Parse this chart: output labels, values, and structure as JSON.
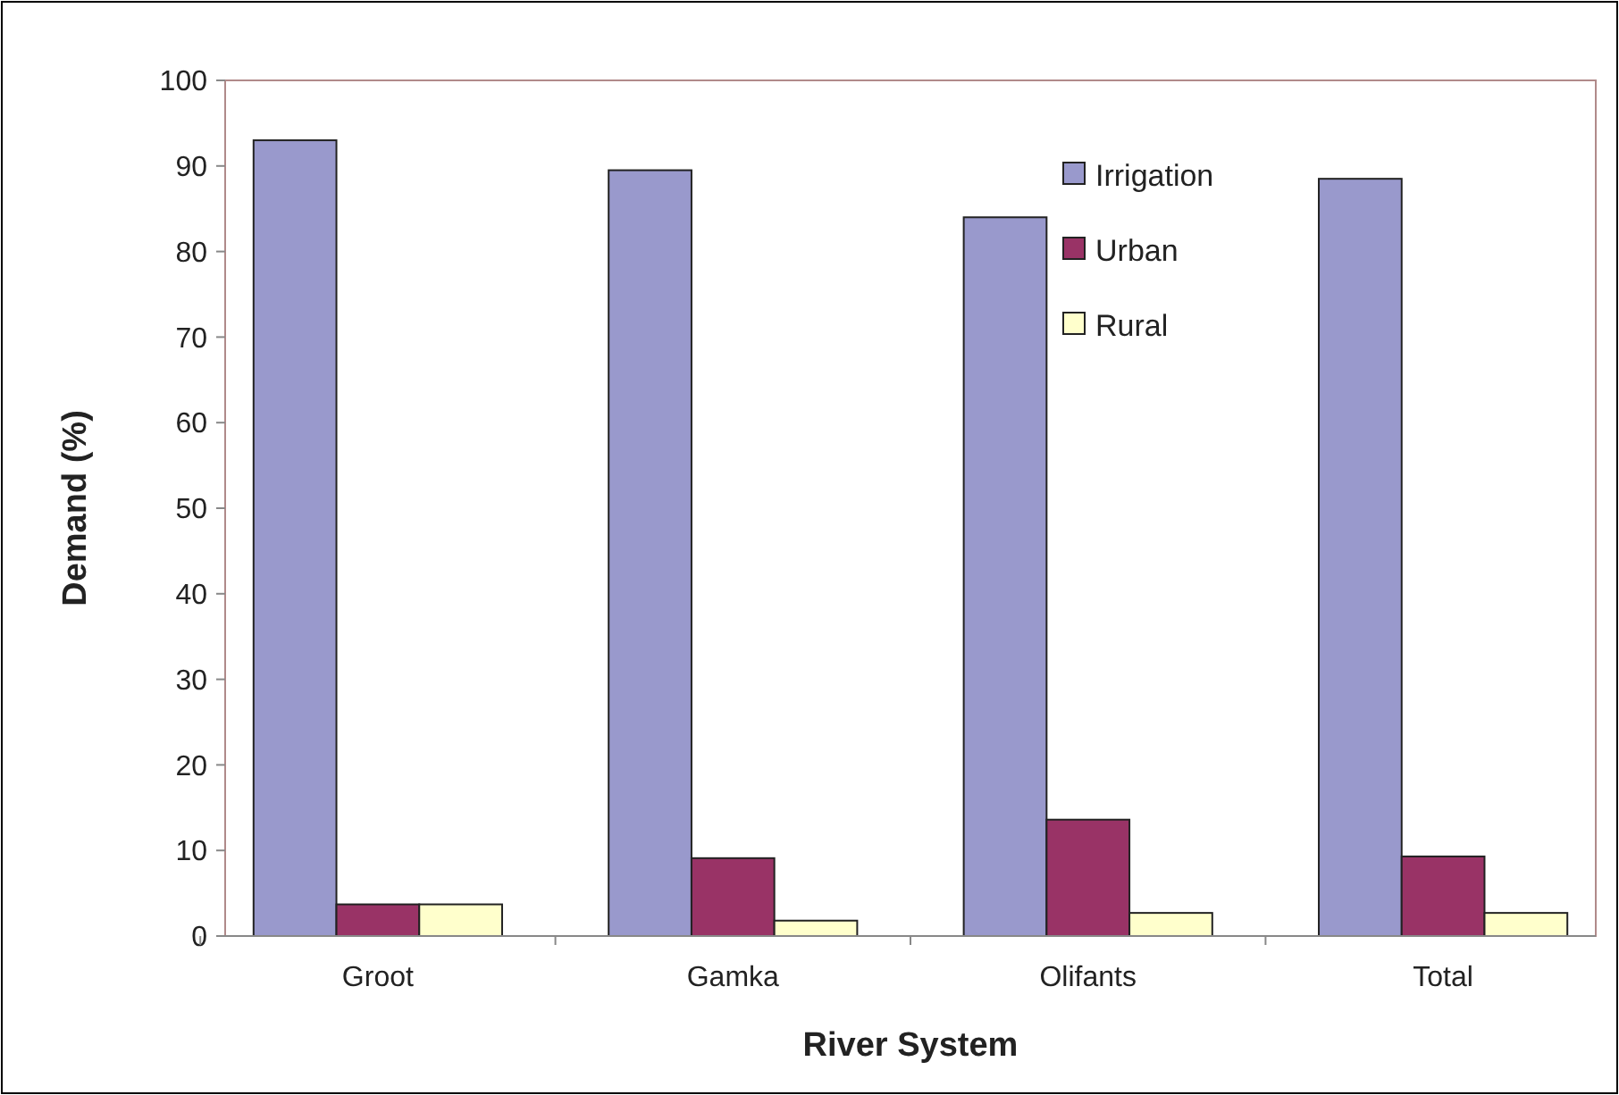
{
  "chart_data": {
    "type": "bar",
    "xlabel": "River System",
    "ylabel": "Demand (%)",
    "categories": [
      "Groot",
      "Gamka",
      "Olifants",
      "Total"
    ],
    "series": [
      {
        "name": "Irrigation",
        "color": "#9999cc",
        "values": [
          93,
          89.5,
          84,
          88.5
        ]
      },
      {
        "name": "Urban",
        "color": "#993366",
        "values": [
          3.7,
          9.1,
          13.6,
          9.3
        ]
      },
      {
        "name": "Rural",
        "color": "#ffffcc",
        "values": [
          3.7,
          1.8,
          2.7,
          2.7
        ]
      }
    ],
    "ylim": [
      0,
      100
    ],
    "yticks": [
      0,
      10,
      20,
      30,
      40,
      50,
      60,
      70,
      80,
      90,
      100
    ],
    "grid": false,
    "legend": "top right"
  }
}
